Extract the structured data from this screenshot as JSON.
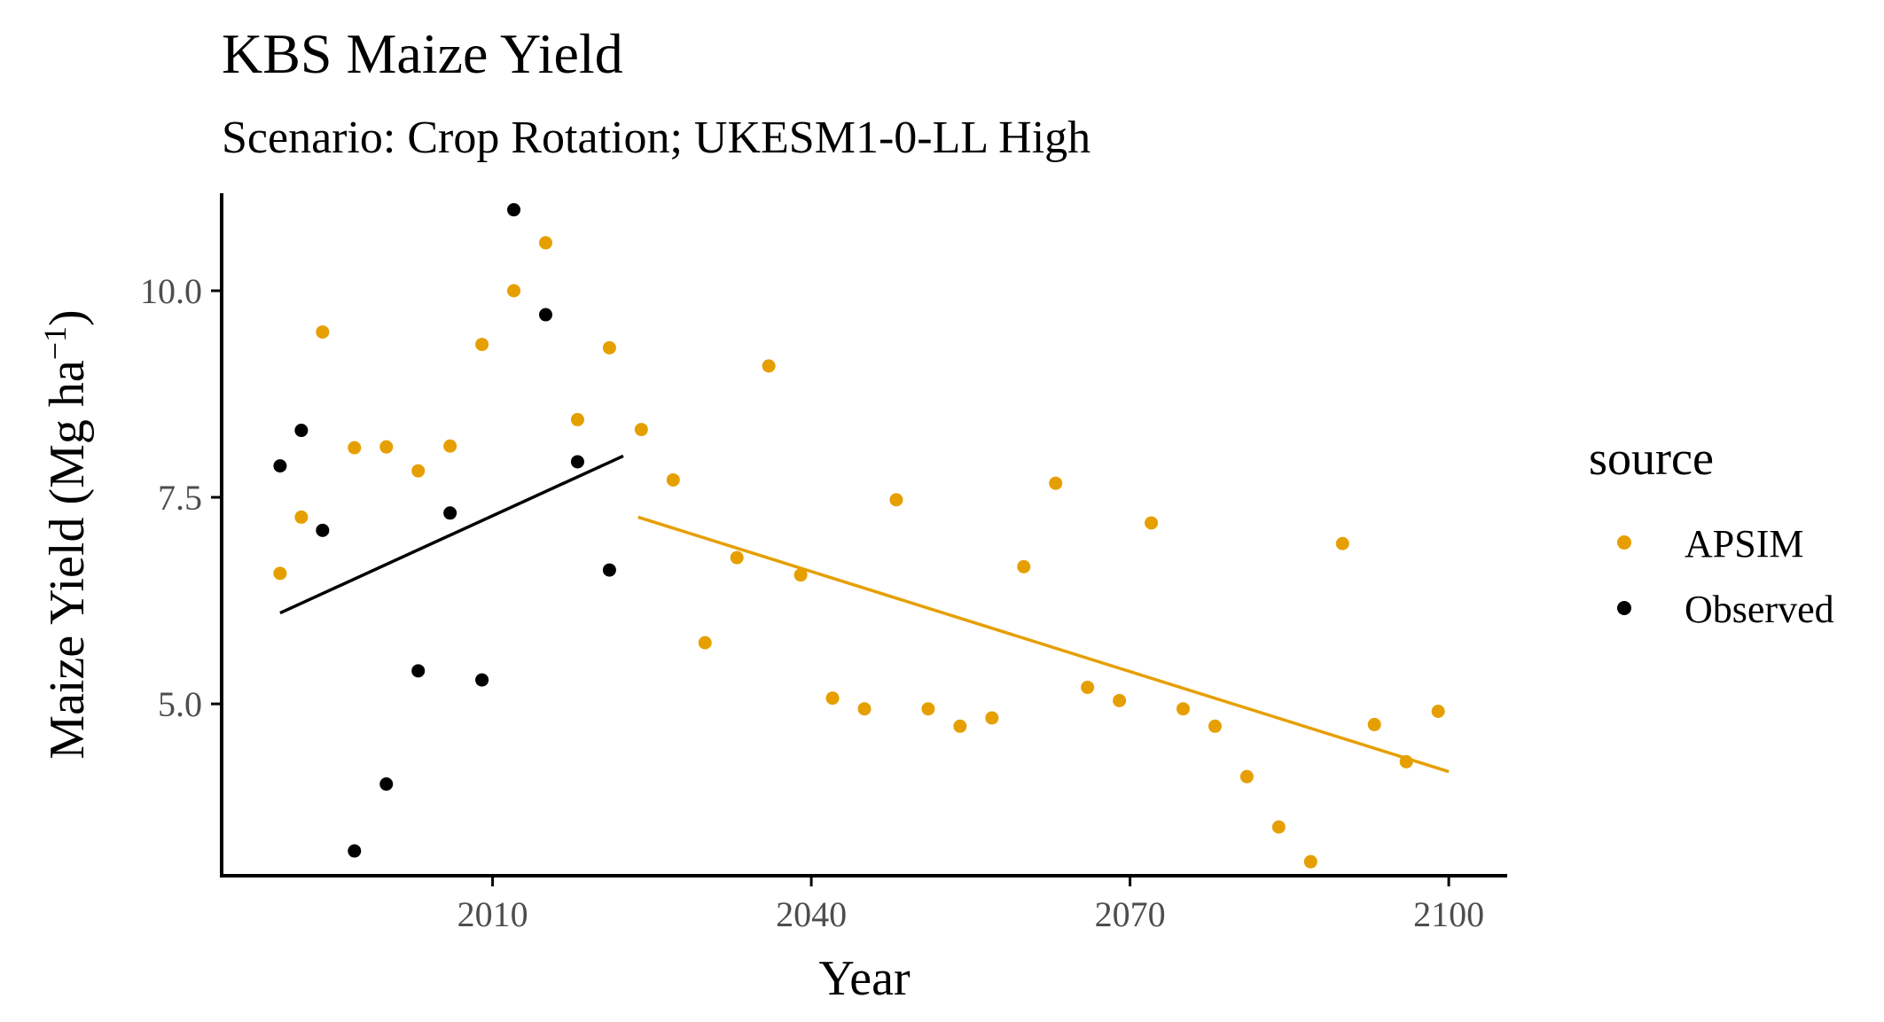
{
  "colors": {
    "apsim": "#E69F00",
    "observed": "#000000",
    "axis": "#000000",
    "tick_text": "#4d4d4d",
    "background": "#ffffff"
  },
  "chart_data": {
    "type": "scatter",
    "title": "KBS Maize Yield",
    "subtitle": "Scenario: Crop Rotation; UKESM1-0-LL High",
    "xlabel": "Year",
    "ylabel": "Maize Yield (Mg ha",
    "ylabel_superscript": "−1",
    "ylabel_close": ")",
    "xlim": [
      1984.5,
      2105.5
    ],
    "ylim": [
      2.92,
      11.18
    ],
    "x_ticks": [
      2010,
      2040,
      2070,
      2100
    ],
    "x_tick_labels": [
      "2010",
      "2040",
      "2070",
      "2100"
    ],
    "y_ticks": [
      5.0,
      7.5,
      10.0
    ],
    "y_tick_labels": [
      "5.0",
      "7.5",
      "10.0"
    ],
    "grid": false,
    "legend": {
      "title": "source",
      "position": "right",
      "entries": [
        "APSIM",
        "Observed"
      ]
    },
    "series": [
      {
        "name": "APSIM",
        "color": "#E69F00",
        "points": [
          {
            "x": 1990,
            "y": 6.58
          },
          {
            "x": 1992,
            "y": 7.26
          },
          {
            "x": 1994,
            "y": 9.5
          },
          {
            "x": 1997,
            "y": 8.1
          },
          {
            "x": 2000,
            "y": 8.11
          },
          {
            "x": 2003,
            "y": 7.82
          },
          {
            "x": 2006,
            "y": 8.12
          },
          {
            "x": 2009,
            "y": 9.35
          },
          {
            "x": 2012,
            "y": 10.0
          },
          {
            "x": 2015,
            "y": 10.58
          },
          {
            "x": 2018,
            "y": 8.44
          },
          {
            "x": 2021,
            "y": 9.31
          },
          {
            "x": 2024,
            "y": 8.32
          },
          {
            "x": 2027,
            "y": 7.71
          },
          {
            "x": 2030,
            "y": 5.74
          },
          {
            "x": 2033,
            "y": 6.77
          },
          {
            "x": 2036,
            "y": 9.09
          },
          {
            "x": 2039,
            "y": 6.56
          },
          {
            "x": 2042,
            "y": 5.07
          },
          {
            "x": 2045,
            "y": 4.94
          },
          {
            "x": 2048,
            "y": 7.47
          },
          {
            "x": 2051,
            "y": 4.94
          },
          {
            "x": 2054,
            "y": 4.73
          },
          {
            "x": 2057,
            "y": 4.83
          },
          {
            "x": 2060,
            "y": 6.66
          },
          {
            "x": 2063,
            "y": 7.67
          },
          {
            "x": 2066,
            "y": 5.2
          },
          {
            "x": 2069,
            "y": 5.04
          },
          {
            "x": 2072,
            "y": 7.19
          },
          {
            "x": 2075,
            "y": 4.94
          },
          {
            "x": 2078,
            "y": 4.73
          },
          {
            "x": 2081,
            "y": 4.12
          },
          {
            "x": 2084,
            "y": 3.51
          },
          {
            "x": 2087,
            "y": 3.09
          },
          {
            "x": 2090,
            "y": 6.94
          },
          {
            "x": 2093,
            "y": 4.75
          },
          {
            "x": 2096,
            "y": 4.3
          },
          {
            "x": 2099,
            "y": 4.91
          }
        ],
        "trend": {
          "x0": 2023.7,
          "y0": 7.26,
          "x1": 2100,
          "y1": 4.18
        }
      },
      {
        "name": "Observed",
        "color": "#000000",
        "points": [
          {
            "x": 1990,
            "y": 7.88
          },
          {
            "x": 1992,
            "y": 8.31
          },
          {
            "x": 1994,
            "y": 7.1
          },
          {
            "x": 1997,
            "y": 3.22
          },
          {
            "x": 2000,
            "y": 4.03
          },
          {
            "x": 2003,
            "y": 5.4
          },
          {
            "x": 2006,
            "y": 7.31
          },
          {
            "x": 2009,
            "y": 5.29
          },
          {
            "x": 2012,
            "y": 10.98
          },
          {
            "x": 2015,
            "y": 9.71
          },
          {
            "x": 2018,
            "y": 7.93
          },
          {
            "x": 2021,
            "y": 6.62
          }
        ],
        "trend": {
          "x0": 1990,
          "y0": 6.1,
          "x1": 2022.3,
          "y1": 8.0
        }
      }
    ]
  }
}
